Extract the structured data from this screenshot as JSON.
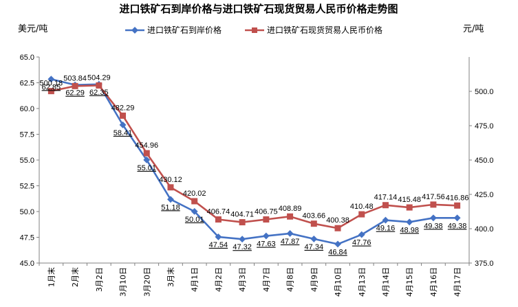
{
  "chart_data": {
    "type": "line",
    "title": "进口铁矿石到岸价格与进口铁矿石现货贸易人民币价格走势图",
    "ylabel_left": "美元/吨",
    "ylabel_right": "元/吨",
    "ylim_left": [
      45.0,
      65.0
    ],
    "ylim_right": [
      375.0,
      525.0
    ],
    "yticks_left": [
      "45.0",
      "47.5",
      "50.0",
      "52.5",
      "55.0",
      "57.5",
      "60.0",
      "62.5",
      "65.0"
    ],
    "yticks_right": [
      "375.0",
      "400.0",
      "425.0",
      "450.0",
      "475.0",
      "500.0"
    ],
    "categories": [
      "1月末",
      "2月末",
      "3月2日",
      "3月10日",
      "3月20日",
      "3月末",
      "4月1日",
      "4月2日",
      "4月3日",
      "4月7日",
      "4月8日",
      "4月9日",
      "4月10日",
      "4月13日",
      "4月14日",
      "4月15日",
      "4月16日",
      "4月17日"
    ],
    "legend_position": "top",
    "grid": false,
    "series": [
      {
        "name": "进口铁矿石到岸价格",
        "axis": "left",
        "color": "#4472C4",
        "marker": "diamond",
        "values": [
          62.85,
          62.29,
          62.35,
          58.41,
          55.01,
          51.18,
          50.01,
          47.54,
          47.32,
          47.63,
          47.87,
          47.34,
          46.84,
          47.76,
          49.16,
          48.98,
          49.38,
          49.38
        ],
        "labels": [
          "62.85",
          "62.29",
          "62.35",
          "58.41",
          "55.01",
          "51.18",
          "50.01",
          "47.54",
          "47.32",
          "47.63",
          "47.87",
          "47.34",
          "46.84",
          "47.76",
          "49.16",
          "48.98",
          "49.38",
          "49.38"
        ]
      },
      {
        "name": "进口铁矿石现货贸易人民币价格",
        "axis": "right",
        "color": "#C0504D",
        "marker": "square",
        "values": [
          500.18,
          503.84,
          504.29,
          482.29,
          454.96,
          430.12,
          420.02,
          406.74,
          404.71,
          406.75,
          408.89,
          403.66,
          400.38,
          410.48,
          417.14,
          415.48,
          417.56,
          416.86
        ],
        "labels": [
          "500.18",
          "503.84",
          "504.29",
          "482.29",
          "454.96",
          "430.12",
          "420.02",
          "406.74",
          "404.71",
          "406.75",
          "408.89",
          "403.66",
          "400.38",
          "410.48",
          "417.14",
          "415.48",
          "417.56",
          "416.86"
        ]
      }
    ]
  }
}
